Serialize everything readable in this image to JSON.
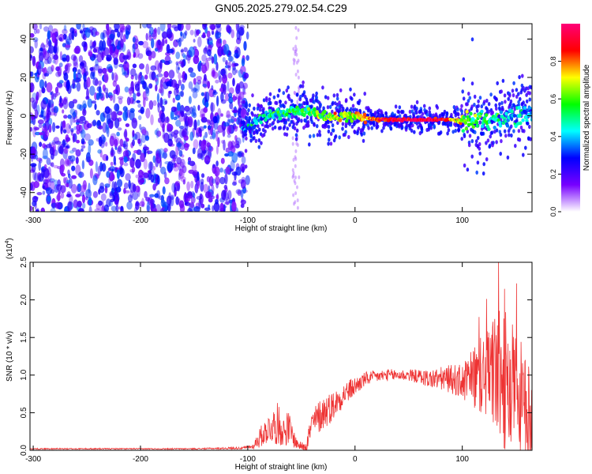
{
  "title": "GN05.2025.279.02.54.C29",
  "chart_data": [
    {
      "type": "heatmap",
      "title": "GN05.2025.279.02.54.C29",
      "xlabel": "Height of straight line (km)",
      "ylabel": "Frequency (Hz)",
      "xlim": [
        -303,
        165
      ],
      "ylim": [
        -50,
        48
      ],
      "xticks": [
        -300,
        -200,
        -100,
        0,
        100
      ],
      "yticks": [
        -40,
        -20,
        0,
        20,
        40
      ],
      "colorbar": {
        "label": "Normalized spectral amplitude",
        "range": [
          0,
          1
        ],
        "ticks": [
          "0.0",
          "0.2",
          "0.4",
          "0.6",
          "0.8"
        ],
        "stops": [
          "#ffffff",
          "#7700ff",
          "#0000ff",
          "#00ffff",
          "#00ff00",
          "#ffff00",
          "#ff0000",
          "#ff0077"
        ]
      },
      "features": {
        "noise_region_km": [
          -303,
          -100
        ],
        "signal_ridge": [
          {
            "x": -105,
            "y": -8,
            "a": 0.3
          },
          {
            "x": -95,
            "y": -4,
            "a": 0.4
          },
          {
            "x": -80,
            "y": 0,
            "a": 0.45
          },
          {
            "x": -60,
            "y": 2,
            "a": 0.5
          },
          {
            "x": -45,
            "y": 3,
            "a": 0.55
          },
          {
            "x": -35,
            "y": 1,
            "a": 0.6
          },
          {
            "x": -20,
            "y": -1,
            "a": 0.65
          },
          {
            "x": 0,
            "y": 0,
            "a": 0.7
          },
          {
            "x": 20,
            "y": -2,
            "a": 0.85
          },
          {
            "x": 40,
            "y": -2,
            "a": 0.95
          },
          {
            "x": 60,
            "y": -2,
            "a": 0.97
          },
          {
            "x": 80,
            "y": -2,
            "a": 0.95
          },
          {
            "x": 95,
            "y": -2,
            "a": 0.7
          },
          {
            "x": 110,
            "y": -3,
            "a": 0.55
          },
          {
            "x": 130,
            "y": -2,
            "a": 0.45
          },
          {
            "x": 150,
            "y": 0,
            "a": 0.4
          },
          {
            "x": 165,
            "y": 2,
            "a": 0.35
          }
        ]
      }
    },
    {
      "type": "line",
      "xlabel": "Height of straight line (km)",
      "ylabel": "SNR (10 * v/v)",
      "y_multiplier": "(x10^4)",
      "y_multiplier_base": "(x10",
      "y_multiplier_exp": "4",
      "y_multiplier_close": ")",
      "xlim": [
        -303,
        165
      ],
      "ylim": [
        0,
        2.5
      ],
      "xticks": [
        -300,
        -200,
        -100,
        0,
        100
      ],
      "yticks": [
        "0.0",
        "0.5",
        "1.0",
        "1.5",
        "2.0",
        "2.5"
      ],
      "series": [
        {
          "color": "#ee3333",
          "x": [
            -303,
            -250,
            -200,
            -150,
            -105,
            -95,
            -90,
            -80,
            -72,
            -67,
            -62,
            -55,
            -50,
            -45,
            -40,
            -30,
            -20,
            -10,
            0,
            10,
            20,
            30,
            40,
            50,
            60,
            70,
            80,
            90,
            100,
            110,
            120,
            130,
            140,
            150,
            160,
            165
          ],
          "values": [
            0.02,
            0.02,
            0.02,
            0.02,
            0.03,
            0.05,
            0.15,
            0.3,
            0.35,
            0.25,
            0.3,
            0.1,
            0.05,
            0.1,
            0.35,
            0.5,
            0.6,
            0.75,
            0.85,
            0.95,
            0.98,
            1.0,
            1.0,
            1.0,
            0.98,
            0.95,
            0.95,
            0.95,
            0.9,
            0.95,
            1.0,
            1.05,
            0.9,
            0.7,
            0.5,
            0.4
          ],
          "noise_amplitude": [
            0.005,
            0.005,
            0.005,
            0.005,
            0.01,
            0.02,
            0.08,
            0.12,
            0.18,
            0.12,
            0.15,
            0.05,
            0.03,
            0.08,
            0.12,
            0.15,
            0.12,
            0.1,
            0.08,
            0.06,
            0.05,
            0.05,
            0.05,
            0.05,
            0.06,
            0.08,
            0.1,
            0.12,
            0.15,
            0.25,
            0.35,
            0.5,
            0.6,
            0.6,
            0.45,
            0.35
          ]
        }
      ]
    }
  ]
}
